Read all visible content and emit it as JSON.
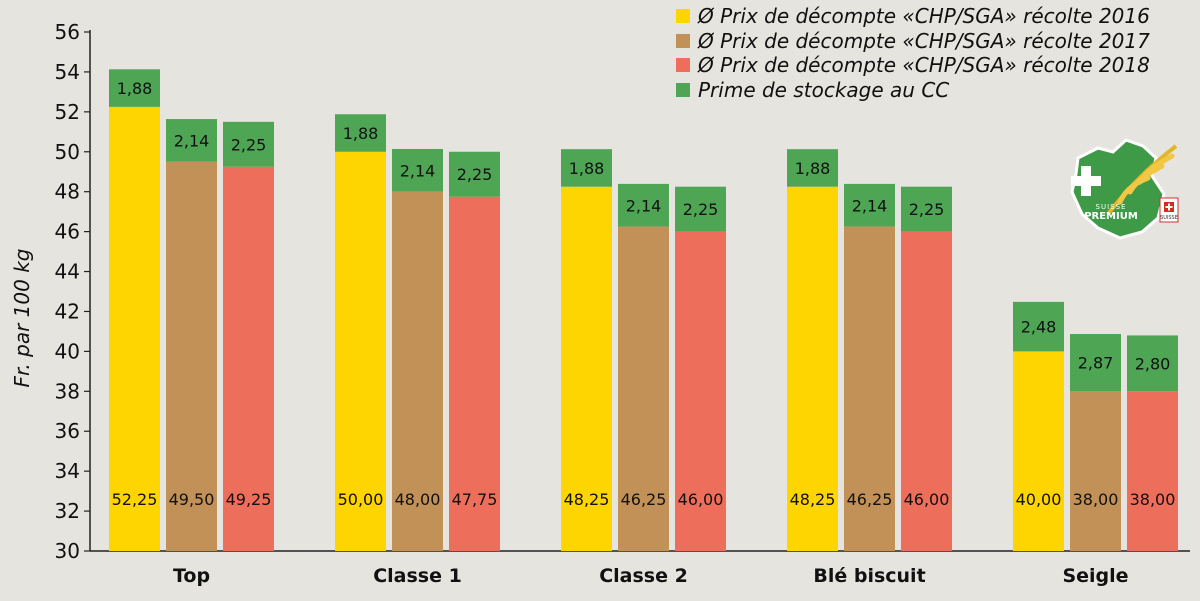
{
  "chart_data": {
    "type": "bar",
    "stacked": true,
    "ylabel": "Fr. par 100 kg",
    "ylim": [
      30,
      56
    ],
    "yticks": [
      30,
      32,
      34,
      36,
      38,
      40,
      42,
      44,
      46,
      48,
      50,
      52,
      54,
      56
    ],
    "grid": false,
    "legend_position": "top-right",
    "categories": [
      "Top",
      "Classe 1",
      "Classe 2",
      "Blé biscuit",
      "Seigle"
    ],
    "series": [
      {
        "name": "Ø Prix de décompte «CHP/SGA» récolte 2016",
        "color": "#ffd500",
        "base_values": [
          52.25,
          50.0,
          48.25,
          48.25,
          40.0
        ],
        "base_labels": [
          "52,25",
          "50,00",
          "48,25",
          "48,25",
          "40,00"
        ],
        "premium_values": [
          1.88,
          1.88,
          1.88,
          1.88,
          2.48
        ],
        "premium_labels": [
          "1,88",
          "1,88",
          "1,88",
          "1,88",
          "2,48"
        ]
      },
      {
        "name": "Ø Prix de décompte «CHP/SGA» récolte 2017",
        "color": "#c29158",
        "base_values": [
          49.5,
          48.0,
          46.25,
          46.25,
          38.0
        ],
        "base_labels": [
          "49,50",
          "48,00",
          "46,25",
          "46,25",
          "38,00"
        ],
        "premium_values": [
          2.14,
          2.14,
          2.14,
          2.14,
          2.87
        ],
        "premium_labels": [
          "2,14",
          "2,14",
          "2,14",
          "2,14",
          "2,87"
        ]
      },
      {
        "name": "Ø Prix de décompte «CHP/SGA» récolte 2018",
        "color": "#ee6e5c",
        "base_values": [
          49.25,
          47.75,
          46.0,
          46.0,
          38.0
        ],
        "base_labels": [
          "49,25",
          "47,75",
          "46,00",
          "46,00",
          "38,00"
        ],
        "premium_values": [
          2.25,
          2.25,
          2.25,
          2.25,
          2.8
        ],
        "premium_labels": [
          "2,25",
          "2,25",
          "2,25",
          "2,25",
          "2,80"
        ]
      }
    ],
    "premium_series": {
      "name": "Prime de stockage au CC",
      "color": "#4ea655"
    }
  },
  "logo": {
    "line1": "SUISSE",
    "line2": "PREMIUM",
    "badge": "SUISSE"
  }
}
